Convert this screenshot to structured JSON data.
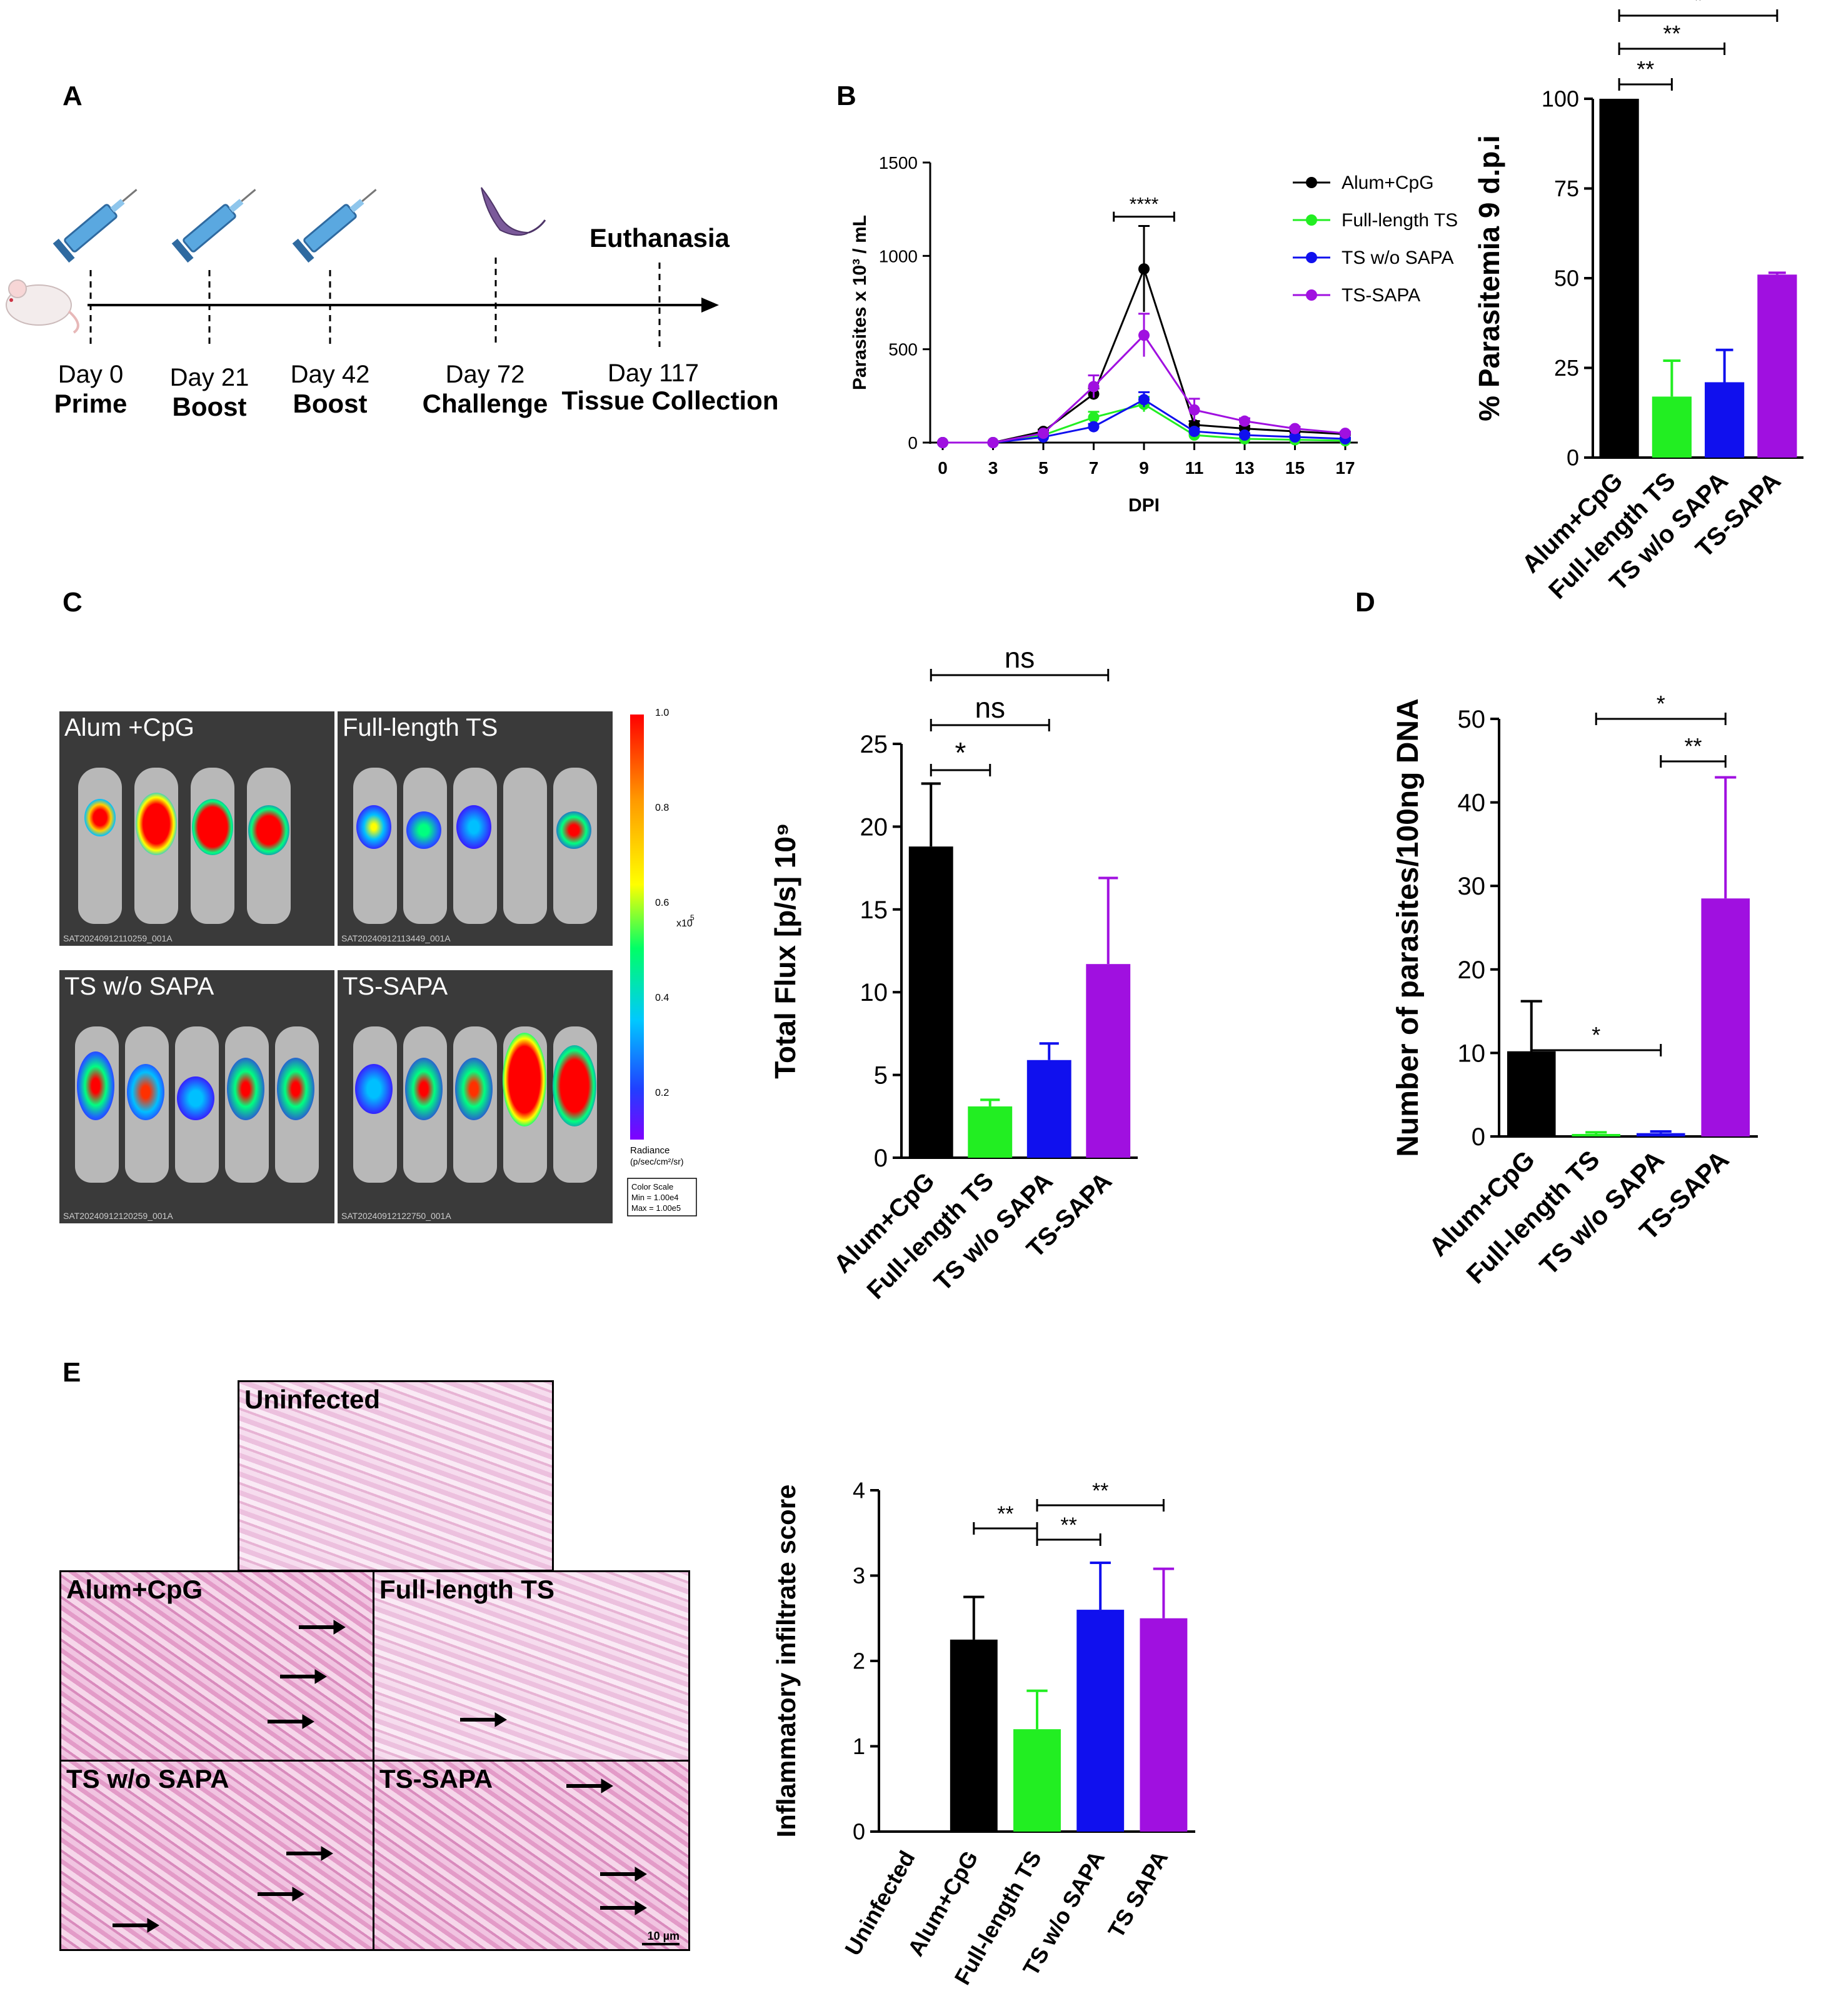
{
  "panels": {
    "A": {
      "letter": "A",
      "euthanasia_label": "Euthanasia",
      "timeline": [
        {
          "day": "Day 0",
          "event": "Prime",
          "icon": "syringe-icon"
        },
        {
          "day": "Day 21",
          "event": "Boost",
          "icon": "syringe-icon"
        },
        {
          "day": "Day 42",
          "event": "Boost",
          "icon": "syringe-icon"
        },
        {
          "day": "Day 72",
          "event": "Challenge",
          "icon": "parasite-icon"
        },
        {
          "day": "Day 117",
          "event": "Tissue Collection",
          "icon": ""
        }
      ]
    },
    "B": {
      "letter": "B"
    },
    "C": {
      "letter": "C",
      "images": [
        {
          "label": "Alum +CpG",
          "file": "SAT20240912110259_001A"
        },
        {
          "label": "Full-length TS",
          "file": "SAT20240912113449_001A"
        },
        {
          "label": "TS w/o SAPA",
          "file": "SAT20240912120259_001A"
        },
        {
          "label": "TS-SAPA",
          "file": "SAT20240912122750_001A"
        }
      ],
      "colorbar": {
        "ticks": [
          "1.0",
          "0.8",
          "0.6",
          "0.4",
          "0.2"
        ],
        "multiplier": "x10",
        "multiplier_exp": "5",
        "unit_title": "Radiance",
        "unit": "(p/sec/cm²/sr)",
        "scale_title": "Color Scale",
        "scale_min": "Min = 1.00e4",
        "scale_max": "Max = 1.00e5"
      }
    },
    "D": {
      "letter": "D"
    },
    "E": {
      "letter": "E",
      "images": [
        "Uninfected",
        "Alum+CpG",
        "Full-length TS",
        "TS w/o SAPA",
        "TS-SAPA"
      ],
      "scale_bar": "10 µm"
    }
  },
  "chart_data": [
    {
      "id": "B-line",
      "type": "line",
      "x": [
        0,
        3,
        5,
        7,
        9,
        11,
        13,
        15,
        17
      ],
      "xlabel": "DPI",
      "ylabel": "Parasites x 10³ / mL",
      "ylim": [
        0,
        1500
      ],
      "yticks": [
        0,
        500,
        1000,
        1500
      ],
      "series": [
        {
          "name": "Alum+CpG",
          "color": "#000000",
          "values": [
            0,
            0,
            60,
            260,
            930,
            95,
            75,
            60,
            45
          ],
          "err": [
            0,
            0,
            10,
            30,
            230,
            20,
            15,
            10,
            8
          ]
        },
        {
          "name": "Full-length TS",
          "color": "#22ee22",
          "values": [
            0,
            0,
            40,
            135,
            205,
            40,
            20,
            15,
            10
          ],
          "err": [
            0,
            0,
            10,
            30,
            40,
            10,
            5,
            5,
            5
          ]
        },
        {
          "name": "TS w/o SAPA",
          "color": "#1010ee",
          "values": [
            0,
            0,
            30,
            85,
            230,
            60,
            40,
            30,
            20
          ],
          "err": [
            0,
            0,
            10,
            15,
            40,
            15,
            10,
            8,
            5
          ]
        },
        {
          "name": "TS-SAPA",
          "color": "#a010e0",
          "values": [
            0,
            0,
            50,
            300,
            575,
            175,
            115,
            75,
            50
          ],
          "err": [
            0,
            0,
            10,
            60,
            115,
            60,
            15,
            10,
            8
          ]
        }
      ],
      "annotations": [
        {
          "text": "****",
          "x1": 7.8,
          "x2": 10.2,
          "y": 1210
        }
      ],
      "legend": "top-right"
    },
    {
      "id": "B-bar",
      "type": "bar",
      "categories": [
        "Alum+CpG",
        "Full-length TS",
        "TS w/o SAPA",
        "TS-SAPA"
      ],
      "colors": [
        "#000000",
        "#22ee22",
        "#1010ee",
        "#a010e0"
      ],
      "values": [
        100,
        17,
        21,
        51
      ],
      "err": [
        0,
        10,
        9,
        0.5
      ],
      "ylabel": "% Parasitemia 9 d.p.i",
      "ylim": [
        0,
        100
      ],
      "yticks": [
        0,
        25,
        50,
        75,
        100
      ],
      "significance": [
        {
          "text": "**",
          "from": 0,
          "to": 1
        },
        {
          "text": "**",
          "from": 0,
          "to": 2
        },
        {
          "text": "*",
          "from": 0,
          "to": 3
        }
      ]
    },
    {
      "id": "C-bar",
      "type": "bar",
      "categories": [
        "Alum+CpG",
        "Full-length TS",
        "TS w/o SAPA",
        "TS-SAPA"
      ],
      "colors": [
        "#000000",
        "#22ee22",
        "#1010ee",
        "#a010e0"
      ],
      "values": [
        18.8,
        3.1,
        5.9,
        11.7
      ],
      "err": [
        3.8,
        0.4,
        1.0,
        5.2
      ],
      "ylabel": "Total Flux [p/s] 10⁹",
      "ylim": [
        0,
        25
      ],
      "yticks": [
        0,
        5,
        10,
        15,
        20,
        25
      ],
      "significance": [
        {
          "text": "*",
          "from": 0,
          "to": 1
        },
        {
          "text": "ns",
          "from": 0,
          "to": 2
        },
        {
          "text": "ns",
          "from": 0,
          "to": 3
        }
      ]
    },
    {
      "id": "D-bar",
      "type": "bar",
      "categories": [
        "Alum+CpG",
        "Full-length TS",
        "TS w/o SAPA",
        "TS-SAPA"
      ],
      "colors": [
        "#000000",
        "#22ee22",
        "#1010ee",
        "#a010e0"
      ],
      "values": [
        10.2,
        0.3,
        0.4,
        28.5
      ],
      "err": [
        6.0,
        0.2,
        0.2,
        14.5
      ],
      "ylabel": "Number of parasites/100ng DNA",
      "ylim": [
        0,
        50
      ],
      "yticks": [
        0,
        10,
        20,
        30,
        40,
        50
      ],
      "significance": [
        {
          "text": "*",
          "from": 0,
          "to": 2
        },
        {
          "text": "**",
          "from": 2,
          "to": 3
        },
        {
          "text": "*",
          "from": 1,
          "to": 3
        }
      ]
    },
    {
      "id": "E-bar",
      "type": "bar",
      "categories": [
        "Uninfected",
        "Alum+CpG",
        "Full-length TS",
        "TS w/o SAPA",
        "TS SAPA"
      ],
      "colors": [
        "#ffffff",
        "#000000",
        "#22ee22",
        "#1010ee",
        "#a010e0"
      ],
      "values": [
        0,
        2.25,
        1.2,
        2.6,
        2.5
      ],
      "err": [
        0,
        0.5,
        0.45,
        0.55,
        0.58
      ],
      "ylabel": "Inflammatory infiltrate score",
      "ylim": [
        0,
        4
      ],
      "yticks": [
        0,
        1,
        2,
        3,
        4
      ],
      "significance": [
        {
          "text": "**",
          "from": 1,
          "to": 2
        },
        {
          "text": "**",
          "from": 2,
          "to": 3
        },
        {
          "text": "**",
          "from": 2,
          "to": 4
        }
      ]
    }
  ]
}
